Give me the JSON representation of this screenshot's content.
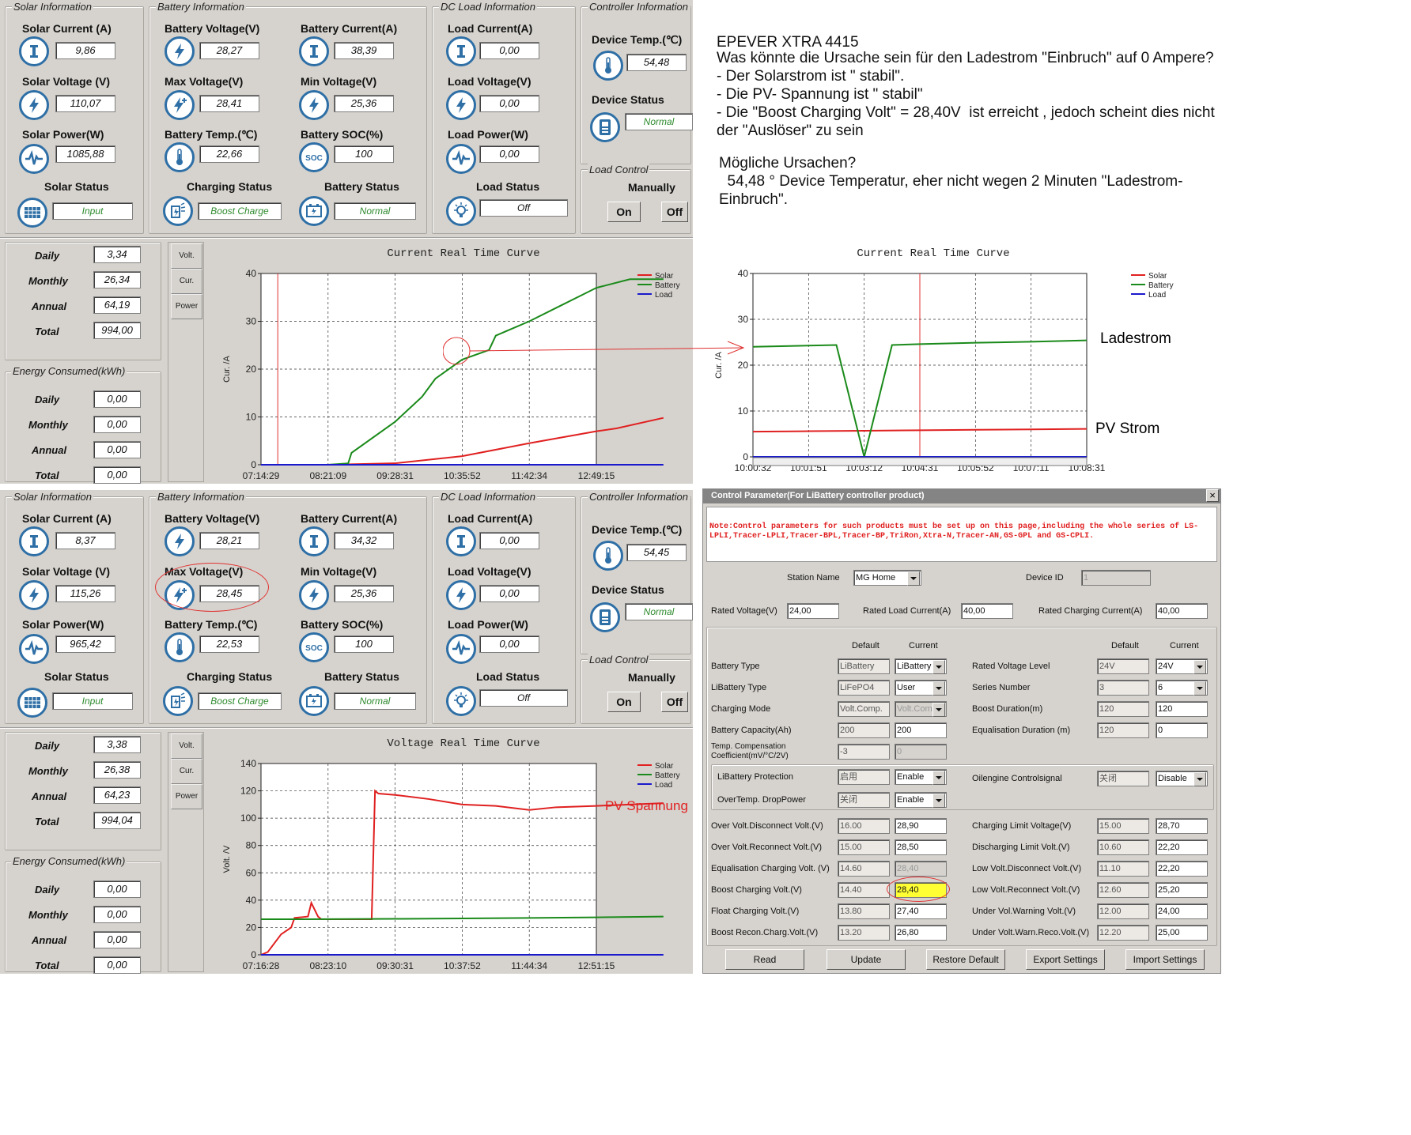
{
  "panelTop": {
    "solar": {
      "title": "Solar Information",
      "current_label": "Solar Current (A)",
      "current": "9,86",
      "voltage_label": "Solar Voltage (V)",
      "voltage": "110,07",
      "power_label": "Solar Power(W)",
      "power": "1085,88",
      "status_label": "Solar Status",
      "status": "Input"
    },
    "battery": {
      "title": "Battery Information",
      "voltage_label": "Battery Voltage(V)",
      "voltage": "28,27",
      "current_label": "Battery Current(A)",
      "current": "38,39",
      "maxv_label": "Max Voltage(V)",
      "maxv": "28,41",
      "minv_label": "Min Voltage(V)",
      "minv": "25,36",
      "temp_label": "Battery Temp.(℃)",
      "temp": "22,66",
      "soc_label": "Battery SOC(%)",
      "soc": "100",
      "charging_label": "Charging Status",
      "charging": "Boost Charge",
      "status_label": "Battery Status",
      "status": "Normal"
    },
    "load": {
      "title": "DC Load Information",
      "current_label": "Load Current(A)",
      "current": "0,00",
      "voltage_label": "Load Voltage(V)",
      "voltage": "0,00",
      "power_label": "Load Power(W)",
      "power": "0,00",
      "status_label": "Load Status",
      "status": "Off"
    },
    "controller": {
      "title": "Controller Information",
      "temp_label": "Device Temp.(℃)",
      "temp": "54,48",
      "status_label": "Device Status",
      "status": "Normal",
      "load_control": "Load Control",
      "manually": "Manually",
      "on": "On",
      "off": "Off"
    },
    "generated": {
      "daily_label": "Daily",
      "daily": "3,34",
      "monthly_label": "Monthly",
      "monthly": "26,34",
      "annual_label": "Annual",
      "annual": "64,19",
      "total_label": "Total",
      "total": "994,00"
    },
    "consumed": {
      "title": "Energy Consumed(kWh)",
      "daily_label": "Daily",
      "daily": "0,00",
      "monthly_label": "Monthly",
      "monthly": "0,00",
      "annual_label": "Annual",
      "annual": "0,00",
      "total_label": "Total",
      "total": "0,00"
    },
    "tabs": [
      "Volt.",
      "Cur.",
      "Power"
    ]
  },
  "panelBottom": {
    "solar": {
      "title": "Solar Information",
      "current_label": "Solar Current (A)",
      "current": "8,37",
      "voltage_label": "Solar Voltage (V)",
      "voltage": "115,26",
      "power_label": "Solar Power(W)",
      "power": "965,42",
      "status_label": "Solar Status",
      "status": "Input"
    },
    "battery": {
      "title": "Battery Information",
      "voltage_label": "Battery Voltage(V)",
      "voltage": "28,21",
      "current_label": "Battery Current(A)",
      "current": "34,32",
      "maxv_label": "Max Voltage(V)",
      "maxv": "28,45",
      "minv_label": "Min Voltage(V)",
      "minv": "25,36",
      "temp_label": "Battery Temp.(℃)",
      "temp": "22,53",
      "soc_label": "Battery SOC(%)",
      "soc": "100",
      "charging_label": "Charging Status",
      "charging": "Boost Charge",
      "status_label": "Battery Status",
      "status": "Normal"
    },
    "load": {
      "title": "DC Load Information",
      "current_label": "Load Current(A)",
      "current": "0,00",
      "voltage_label": "Load Voltage(V)",
      "voltage": "0,00",
      "power_label": "Load Power(W)",
      "power": "0,00",
      "status_label": "Load Status",
      "status": "Off"
    },
    "controller": {
      "title": "Controller Information",
      "temp_label": "Device Temp.(℃)",
      "temp": "54,45",
      "status_label": "Device Status",
      "status": "Normal",
      "load_control": "Load Control",
      "manually": "Manually",
      "on": "On",
      "off": "Off"
    },
    "generated": {
      "daily_label": "Daily",
      "daily": "3,38",
      "monthly_label": "Monthly",
      "monthly": "26,38",
      "annual_label": "Annual",
      "annual": "64,23",
      "total_label": "Total",
      "total": "994,04"
    },
    "consumed": {
      "title": "Energy Consumed(kWh)",
      "daily_label": "Daily",
      "daily": "0,00",
      "monthly_label": "Monthly",
      "monthly": "0,00",
      "annual_label": "Annual",
      "annual": "0,00",
      "total_label": "Total",
      "total": "0,00"
    },
    "tabs": [
      "Volt.",
      "Cur.",
      "Power"
    ]
  },
  "notes": {
    "heading": "EPEVER XTRA 4415",
    "body": "Was könnte die Ursache sein für den Ladestrom \"Einbruch\" auf 0 Ampere?\n- Der Solarstrom ist \" stabil\".\n- Die PV- Spannung ist \" stabil\"\n- Die \"Boost Charging Volt\" = 28,40V  ist erreicht , jedoch scheint dies nicht\nder \"Auslöser\" zu sein",
    "causes": "Mögliche Ursachen?\n  54,48 ° Device Temperatur, eher nicht wegen 2 Minuten \"Ladestrom-\nEinbruch\".",
    "annot_ladestrom": "Ladestrom",
    "annot_pvstrom": "PV Strom",
    "annot_pvspannung": "PV Spannung"
  },
  "chart_data": [
    {
      "type": "line",
      "title": "Current Real Time Curve",
      "ylabel": "Cur. /A",
      "ylim": [
        0,
        40
      ],
      "yticks": [
        0,
        10,
        20,
        30,
        40
      ],
      "categories": [
        "07:14:29",
        "08:21:09",
        "09:28:31",
        "10:35:52",
        "11:42:34",
        "12:49:15"
      ],
      "legend": "top-right",
      "series": [
        {
          "name": "Solar",
          "color": "#e02020",
          "x": [
            0,
            1,
            2,
            3,
            4,
            5,
            5.3,
            6
          ],
          "values": [
            0,
            0,
            0.3,
            1.8,
            4.5,
            7.0,
            7.6,
            9.8
          ]
        },
        {
          "name": "Battery",
          "color": "#1a8a1a",
          "x": [
            0,
            1,
            1.3,
            1.35,
            2,
            2.4,
            2.6,
            3.0,
            3.4,
            3.5,
            4,
            4.5,
            5,
            5.5,
            6
          ],
          "values": [
            0,
            0,
            0.3,
            2.5,
            9,
            14.2,
            18,
            22,
            24,
            27,
            30,
            33.5,
            37,
            38.8,
            38.8
          ]
        },
        {
          "name": "Load",
          "color": "#1a1acc",
          "x": [
            0,
            6
          ],
          "values": [
            0,
            0
          ]
        }
      ]
    },
    {
      "type": "line",
      "title": "Current Real Time Curve",
      "ylabel": "Cur. /A",
      "ylim": [
        0,
        40
      ],
      "yticks": [
        0,
        10,
        20,
        30,
        40
      ],
      "categories": [
        "10:00:32",
        "10:01:51",
        "10:03:12",
        "10:04:31",
        "10:05:52",
        "10:07:11",
        "10:08:31"
      ],
      "legend": "top-right",
      "series": [
        {
          "name": "Solar",
          "color": "#e02020",
          "x": [
            0,
            1,
            2,
            3,
            4,
            5,
            6
          ],
          "values": [
            5.5,
            5.6,
            5.7,
            5.8,
            5.9,
            6.0,
            6.1
          ]
        },
        {
          "name": "Battery",
          "color": "#1a8a1a",
          "x": [
            0,
            1.5,
            2.0,
            2.5,
            3,
            4,
            5,
            6
          ],
          "values": [
            24,
            24.4,
            0,
            24.4,
            24.6,
            24.9,
            25.1,
            25.4
          ]
        },
        {
          "name": "Load",
          "color": "#1a1acc",
          "x": [
            0,
            6
          ],
          "values": [
            0,
            0
          ]
        }
      ]
    },
    {
      "type": "line",
      "title": "Voltage Real Time Curve",
      "ylabel": "Volt. /V",
      "ylim": [
        0,
        140
      ],
      "yticks": [
        0,
        20,
        40,
        60,
        80,
        100,
        120,
        140
      ],
      "categories": [
        "07:16:28",
        "08:23:10",
        "09:30:31",
        "10:37:52",
        "11:44:34",
        "12:51:15"
      ],
      "legend": "top-right",
      "series": [
        {
          "name": "Solar",
          "color": "#e02020",
          "x": [
            0,
            0.1,
            0.3,
            0.45,
            0.5,
            0.7,
            0.75,
            0.85,
            0.9,
            1.65,
            1.7,
            1.75,
            2.0,
            2.5,
            3.0,
            3.5,
            4.0,
            4.4,
            5.0,
            5.5,
            6
          ],
          "values": [
            0,
            2,
            15,
            20,
            27,
            28,
            38,
            28,
            26,
            26,
            120,
            118,
            117,
            114,
            110,
            109,
            106,
            108,
            109,
            110,
            111
          ]
        },
        {
          "name": "Battery",
          "color": "#1a8a1a",
          "x": [
            0,
            1,
            2,
            3,
            4,
            5,
            6
          ],
          "values": [
            26,
            26.1,
            26.3,
            26.6,
            27,
            27.4,
            28
          ]
        },
        {
          "name": "Load",
          "color": "#1a1acc",
          "x": [
            0,
            6
          ],
          "values": [
            0,
            0
          ]
        }
      ]
    }
  ],
  "control": {
    "title": "Control Parameter(For LiBattery controller product)",
    "note": "Note:Control parameters for such products must be set up on this page,including the whole series of LS-LPLI,Tracer-LPLI,Tracer-BPL,Tracer-BP,TriRon,Xtra-N,Tracer-AN,GS-GPL and GS-CPLI.",
    "station_label": "Station Name",
    "station": "MG Home",
    "device_id_label": "Device ID",
    "device_id": "1",
    "rated_voltage_label": "Rated Voltage(V)",
    "rated_voltage": "24,00",
    "rated_load_label": "Rated Load Current(A)",
    "rated_load": "40,00",
    "rated_charging_label": "Rated Charging Current(A)",
    "rated_charging": "40,00",
    "col_default": "Default",
    "col_current": "Current",
    "left": [
      {
        "label": "Battery Type",
        "def": "LiBattery",
        "cur": "LiBattery"
      },
      {
        "label": "LiBattery Type",
        "def": "LiFePO4",
        "cur": "User"
      },
      {
        "label": "Charging Mode",
        "def": "Volt.Comp.",
        "cur": "Volt.Comp"
      },
      {
        "label": "Battery Capacity(Ah)",
        "def": "200",
        "cur": "200"
      },
      {
        "label": "Temp. Compensation\nCoefficient(mV/°C/2V)",
        "def": "-3",
        "cur": "0"
      }
    ],
    "right": [
      {
        "label": "Rated Voltage Level",
        "def": "24V",
        "cur": "24V"
      },
      {
        "label": "Series Number",
        "def": "3",
        "cur": "6"
      },
      {
        "label": "Boost Duration(m)",
        "def": "120",
        "cur": "120"
      },
      {
        "label": "Equalisation Duration (m)",
        "def": "120",
        "cur": "0"
      }
    ],
    "prot": [
      {
        "label": "LiBattery Protection",
        "def": "启用",
        "cur": "Enable"
      },
      {
        "label": "OverTemp. DropPower",
        "def": "关闭",
        "cur": "Enable"
      }
    ],
    "oil": {
      "label": "Oilengine Controlsignal",
      "def": "关闭",
      "cur": "Disable"
    },
    "volt_left": [
      {
        "label": "Over Volt.Disconnect Volt.(V)",
        "def": "16.00",
        "cur": "28,90"
      },
      {
        "label": "Over Volt.Reconnect Volt.(V)",
        "def": "15.00",
        "cur": "28,50"
      },
      {
        "label": "Equalisation Charging Volt. (V)",
        "def": "14.60",
        "cur": "28,40"
      },
      {
        "label": "Boost Charging Volt.(V)",
        "def": "14.40",
        "cur": "28,40"
      },
      {
        "label": "Float Charging Volt.(V)",
        "def": "13.80",
        "cur": "27,40"
      },
      {
        "label": "Boost Recon.Charg.Volt.(V)",
        "def": "13.20",
        "cur": "26,80"
      }
    ],
    "volt_right": [
      {
        "label": "Charging Limit Voltage(V)",
        "def": "15.00",
        "cur": "28,70"
      },
      {
        "label": "Discharging Limit Volt.(V)",
        "def": "10.60",
        "cur": "22,20"
      },
      {
        "label": "Low Volt.Disconnect Volt.(V)",
        "def": "11.10",
        "cur": "22,20"
      },
      {
        "label": "Low Volt.Reconnect Volt.(V)",
        "def": "12.60",
        "cur": "25,20"
      },
      {
        "label": "Under Vol.Warning Volt.(V)",
        "def": "12.00",
        "cur": "24,00"
      },
      {
        "label": "Under Volt.Warn.Reco.Volt.(V)",
        "def": "12.20",
        "cur": "25,00"
      }
    ],
    "buttons": [
      "Read",
      "Update",
      "Restore Default",
      "Export Settings",
      "Import Settings"
    ],
    "close": "×"
  }
}
